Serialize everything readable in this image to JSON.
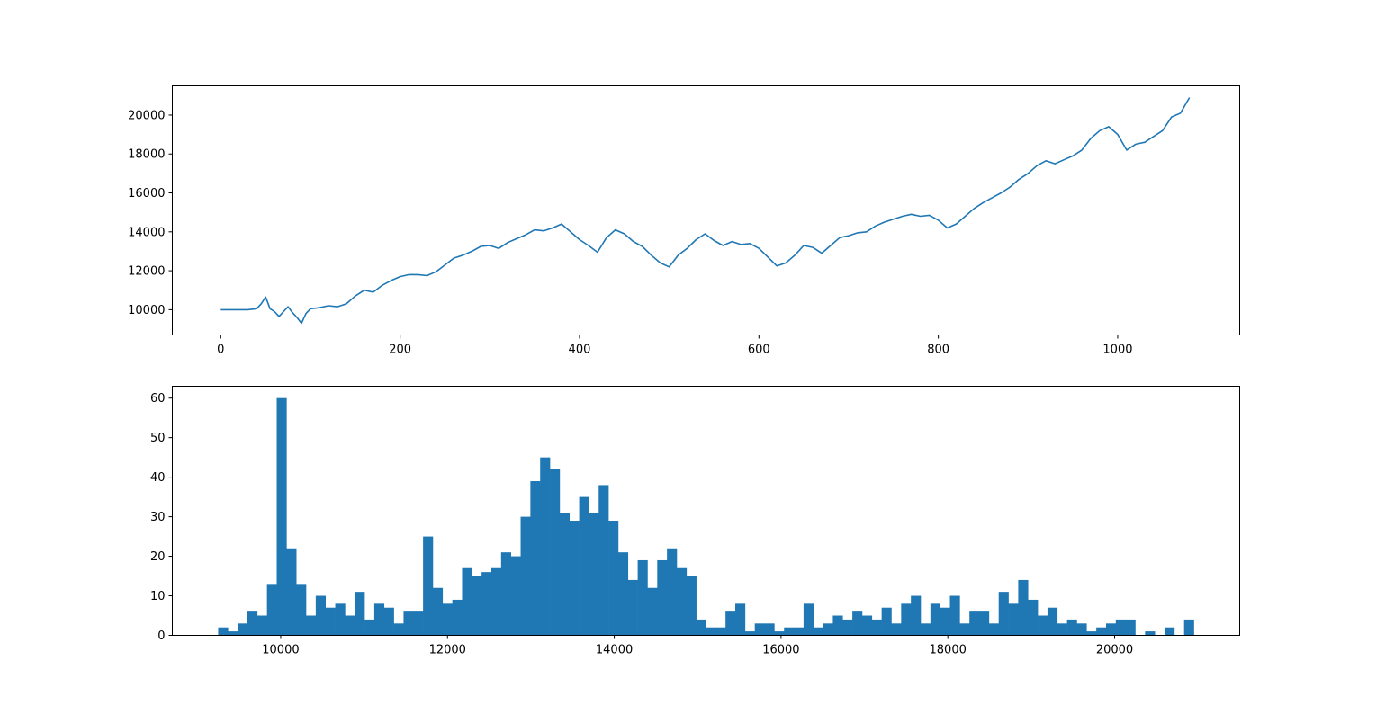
{
  "figure": {
    "background": "#ffffff",
    "series_color": "#1f77b4"
  },
  "chart_data": [
    {
      "type": "line",
      "title": "",
      "xlabel": "",
      "ylabel": "",
      "xlim": [
        -54,
        1136
      ],
      "ylim": [
        8700,
        21500
      ],
      "grid": false,
      "x_ticks": [
        0,
        200,
        400,
        600,
        800,
        1000
      ],
      "x_tick_labels": [
        "0",
        "200",
        "400",
        "600",
        "800",
        "1000"
      ],
      "y_ticks": [
        10000,
        12000,
        14000,
        16000,
        18000,
        20000
      ],
      "y_tick_labels": [
        "10000",
        "12000",
        "14000",
        "16000",
        "18000",
        "20000"
      ],
      "x": [
        0,
        30,
        40,
        45,
        50,
        55,
        60,
        65,
        70,
        75,
        80,
        85,
        90,
        95,
        100,
        110,
        120,
        130,
        140,
        150,
        160,
        170,
        180,
        190,
        200,
        210,
        220,
        230,
        240,
        250,
        260,
        270,
        280,
        290,
        300,
        310,
        320,
        330,
        340,
        350,
        360,
        370,
        380,
        390,
        400,
        410,
        420,
        430,
        440,
        450,
        460,
        470,
        480,
        490,
        500,
        510,
        520,
        530,
        540,
        550,
        560,
        570,
        580,
        590,
        600,
        610,
        620,
        630,
        640,
        650,
        660,
        670,
        680,
        690,
        700,
        710,
        720,
        730,
        740,
        750,
        760,
        770,
        780,
        790,
        800,
        810,
        820,
        830,
        840,
        850,
        860,
        870,
        880,
        890,
        900,
        910,
        920,
        930,
        940,
        950,
        960,
        970,
        980,
        990,
        1000,
        1010,
        1020,
        1030,
        1040,
        1050,
        1060,
        1070,
        1080
      ],
      "y": [
        10000,
        10000,
        10050,
        10300,
        10650,
        10050,
        9900,
        9650,
        9900,
        10150,
        9850,
        9600,
        9300,
        9800,
        10050,
        10100,
        10200,
        10150,
        10300,
        10700,
        11000,
        10900,
        11250,
        11500,
        11700,
        11800,
        11800,
        11750,
        11950,
        12300,
        12650,
        12800,
        13000,
        13250,
        13300,
        13150,
        13450,
        13650,
        13850,
        14100,
        14050,
        14200,
        14400,
        14000,
        13600,
        13300,
        12950,
        13700,
        14100,
        13900,
        13500,
        13250,
        12800,
        12400,
        12200,
        12800,
        13150,
        13600,
        13900,
        13550,
        13300,
        13500,
        13350,
        13400,
        13150,
        12700,
        12250,
        12400,
        12800,
        13300,
        13200,
        12900,
        13300,
        13700,
        13800,
        13950,
        14000,
        14300,
        14500,
        14650,
        14800,
        14900,
        14800,
        14850,
        14600,
        14200,
        14400,
        14800,
        15200,
        15500,
        15750,
        16000,
        16300,
        16700,
        17000,
        17400,
        17650,
        17500,
        17700,
        17900,
        18200,
        18800,
        19200,
        19400,
        19000,
        18200,
        18500,
        18600,
        18900,
        19200,
        19900,
        20100,
        20900
      ]
    },
    {
      "type": "bar",
      "subtype": "histogram",
      "title": "",
      "xlabel": "",
      "ylabel": "",
      "xlim": [
        8700,
        21500
      ],
      "ylim": [
        0,
        63
      ],
      "grid": false,
      "x_ticks": [
        10000,
        12000,
        14000,
        16000,
        18000,
        20000
      ],
      "x_tick_labels": [
        "10000",
        "12000",
        "14000",
        "16000",
        "18000",
        "20000"
      ],
      "y_ticks": [
        0,
        10,
        20,
        30,
        40,
        50,
        60
      ],
      "y_tick_labels": [
        "0",
        "10",
        "20",
        "30",
        "40",
        "50",
        "60"
      ],
      "bin_start": 9250,
      "bin_width": 117,
      "values": [
        2,
        1,
        3,
        6,
        5,
        13,
        60,
        22,
        13,
        5,
        10,
        7,
        8,
        5,
        11,
        4,
        8,
        7,
        3,
        6,
        6,
        25,
        12,
        8,
        9,
        17,
        15,
        16,
        17,
        21,
        20,
        30,
        39,
        45,
        42,
        31,
        29,
        35,
        31,
        38,
        29,
        21,
        14,
        19,
        12,
        19,
        22,
        17,
        15,
        4,
        2,
        2,
        6,
        8,
        1,
        3,
        3,
        1,
        2,
        2,
        8,
        2,
        3,
        5,
        4,
        6,
        5,
        4,
        7,
        3,
        8,
        10,
        3,
        8,
        7,
        10,
        3,
        6,
        6,
        3,
        11,
        8,
        14,
        9,
        5,
        7,
        3,
        4,
        3,
        1,
        2,
        3,
        4,
        4,
        0,
        1,
        0,
        2,
        0,
        4
      ]
    }
  ]
}
